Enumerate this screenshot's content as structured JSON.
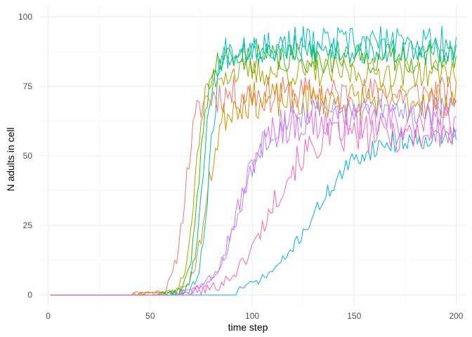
{
  "chart_data": {
    "type": "line",
    "title": "",
    "xlabel": "time step",
    "ylabel": "N adults in cell",
    "xlim": [
      -4,
      205
    ],
    "ylim": [
      -4,
      104
    ],
    "x_ticks": [
      0,
      50,
      100,
      150,
      200
    ],
    "y_ticks": [
      0,
      25,
      50,
      75,
      100
    ],
    "x_minor": [
      25,
      75,
      125,
      175
    ],
    "y_minor": [
      12.5,
      37.5,
      62.5,
      87.5
    ],
    "grid": true,
    "legend": "none",
    "series": [
      {
        "color": "#F8766D",
        "onset": 40,
        "slope": 0.36,
        "mid": 67,
        "plateau": 72,
        "noise": 5,
        "seed": 11
      },
      {
        "color": "#D89000",
        "onset": 45,
        "slope": 0.28,
        "mid": 78,
        "plateau": 70,
        "noise": 5,
        "seed": 23
      },
      {
        "color": "#A3A500",
        "onset": 42,
        "slope": 0.4,
        "mid": 72,
        "plateau": 80,
        "noise": 4,
        "seed": 37
      },
      {
        "color": "#39B600",
        "onset": 55,
        "slope": 0.42,
        "mid": 74,
        "plateau": 85,
        "noise": 4,
        "seed": 41
      },
      {
        "color": "#00BF7D",
        "onset": 55,
        "slope": 0.4,
        "mid": 76,
        "plateau": 88,
        "noise": 4,
        "seed": 53
      },
      {
        "color": "#00BFC4",
        "onset": 60,
        "slope": 0.42,
        "mid": 79,
        "plateau": 90,
        "noise": 5,
        "seed": 67
      },
      {
        "color": "#00B0F6",
        "onset": 93,
        "slope": 0.085,
        "mid": 130,
        "plateau": 57,
        "noise": 3,
        "seed": 71
      },
      {
        "color": "#9590FF",
        "onset": 65,
        "slope": 0.15,
        "mid": 95,
        "plateau": 66,
        "noise": 4,
        "seed": 83
      },
      {
        "color": "#E76BF3",
        "onset": 62,
        "slope": 0.16,
        "mid": 93,
        "plateau": 62,
        "noise": 5,
        "seed": 97
      },
      {
        "color": "#FF62BC",
        "onset": 70,
        "slope": 0.11,
        "mid": 108,
        "plateau": 58,
        "noise": 5,
        "seed": 101
      }
    ]
  }
}
